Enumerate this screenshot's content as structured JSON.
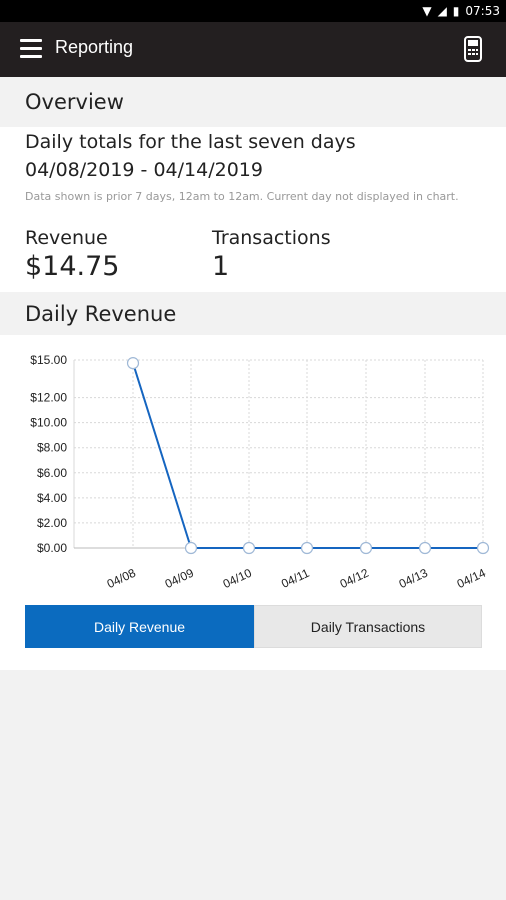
{
  "status_bar": {
    "time": "07:53"
  },
  "app_bar": {
    "title": "Reporting"
  },
  "overview": {
    "section_title": "Overview",
    "subtitle": "Daily totals for the last seven days",
    "date_range": "04/08/2019 - 04/14/2019",
    "note": "Data shown is prior 7 days, 12am to 12am. Current day not displayed in chart.",
    "revenue_label": "Revenue",
    "revenue_value": "$14.75",
    "transactions_label": "Transactions",
    "transactions_value": "1"
  },
  "daily_revenue": {
    "section_title": "Daily Revenue",
    "toggle_revenue": "Daily Revenue",
    "toggle_transactions": "Daily Transactions"
  },
  "colors": {
    "accent": "#0b6bbf",
    "appbar": "#231f20",
    "line": "#1565c0"
  },
  "chart_data": {
    "type": "line",
    "categories": [
      "04/08",
      "04/09",
      "04/10",
      "04/11",
      "04/12",
      "04/13",
      "04/14"
    ],
    "series": [
      {
        "values": [
          14.75,
          0,
          0,
          0,
          0,
          0,
          0
        ]
      }
    ],
    "y_ticks": [
      "$0.00",
      "$2.00",
      "$4.00",
      "$6.00",
      "$8.00",
      "$10.00",
      "$12.00",
      "$15.00"
    ],
    "y_tick_values": [
      0,
      2,
      4,
      6,
      8,
      10,
      12,
      15
    ],
    "ylim": [
      0,
      15
    ],
    "grid": true
  }
}
